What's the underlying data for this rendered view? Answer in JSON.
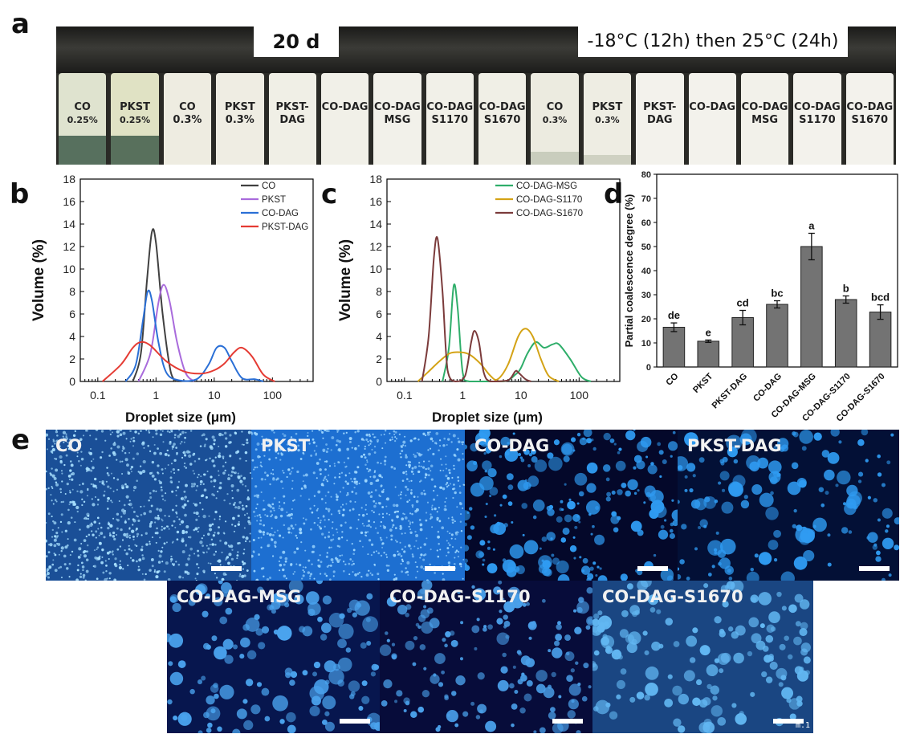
{
  "panel_labels": [
    "a",
    "b",
    "c",
    "d",
    "e"
  ],
  "panel_a": {
    "banner_left": "20 d",
    "banner_right": "-18°C (12h) then 25°C (24h)",
    "vials": [
      {
        "line1": "CO",
        "line2": "0.25%"
      },
      {
        "line1": "PKST",
        "line2": "0.25%"
      },
      {
        "line1": "CO",
        "line2": "0.3%"
      },
      {
        "line1": "PKST",
        "line2": "0.3%"
      },
      {
        "line1": "PKST-DAG",
        "line2": ""
      },
      {
        "line1": "CO-DAG",
        "line2": ""
      },
      {
        "line1": "CO-DAG",
        "line2": "MSG"
      },
      {
        "line1": "CO-DAG",
        "line2": "S1170"
      },
      {
        "line1": "CO-DAG",
        "line2": "S1670"
      },
      {
        "line1": "CO",
        "line2": "0.3%"
      },
      {
        "line1": "PKST",
        "line2": "0.3%"
      },
      {
        "line1": "PKST-DAG",
        "line2": ""
      },
      {
        "line1": "CO-DAG",
        "line2": ""
      },
      {
        "line1": "CO-DAG",
        "line2": "MSG"
      },
      {
        "line1": "CO-DAG",
        "line2": "S1170"
      },
      {
        "line1": "CO-DAG",
        "line2": "S1670"
      }
    ]
  },
  "panel_e": {
    "images": [
      "CO",
      "PKST",
      "CO-DAG",
      "PKST-DAG",
      "CO-DAG-MSG",
      "CO-DAG-S1170",
      "CO-DAG-S1670"
    ],
    "corner_mark": "m.1"
  },
  "chart_data": [
    {
      "type": "line",
      "xlabel": "Droplet size (μm)",
      "ylabel": "Volume (%)",
      "xscale": "log",
      "xlim": [
        0.05,
        500
      ],
      "ylim": [
        0,
        18
      ],
      "x_ticks": [
        0.1,
        1,
        10,
        100
      ],
      "x_tick_labels": [
        "0.1",
        "1",
        "10",
        "100"
      ],
      "y_ticks": [
        0,
        2,
        4,
        6,
        8,
        10,
        12,
        14,
        16,
        18
      ],
      "legend_position": "top-right",
      "series": [
        {
          "name": "CO",
          "color": "#404040",
          "x": [
            0.4,
            0.55,
            0.7,
            0.85,
            1.0,
            1.3,
            1.8,
            2.3
          ],
          "y": [
            0,
            2.5,
            9.0,
            13.3,
            12.3,
            6.0,
            0.8,
            0
          ]
        },
        {
          "name": "PKST",
          "color": "#a96bdc",
          "x": [
            0.5,
            0.8,
            1.1,
            1.35,
            1.7,
            2.3,
            3.2,
            4.5
          ],
          "y": [
            0,
            2.5,
            7.0,
            8.6,
            7.2,
            3.5,
            0.8,
            0
          ]
        },
        {
          "name": "CO-DAG",
          "color": "#2a6fd6",
          "x": [
            0.3,
            0.45,
            0.6,
            0.72,
            0.85,
            1.1,
            1.5,
            2.5,
            5,
            8,
            11,
            15,
            20,
            30,
            50,
            70
          ],
          "y": [
            0,
            1.5,
            5.5,
            8.0,
            7.2,
            3.5,
            0.8,
            0.1,
            0.2,
            1.5,
            3.0,
            3.0,
            1.8,
            0.3,
            0.2,
            0
          ]
        },
        {
          "name": "PKST-DAG",
          "color": "#e53b33",
          "x": [
            0.12,
            0.25,
            0.4,
            0.55,
            0.8,
            1.5,
            3,
            6,
            10,
            15,
            22,
            30,
            45,
            70,
            110
          ],
          "y": [
            0,
            1.5,
            3.0,
            3.5,
            3.2,
            1.8,
            0.9,
            0.7,
            1.0,
            1.6,
            2.6,
            3.0,
            2.2,
            0.6,
            0
          ]
        }
      ]
    },
    {
      "type": "line",
      "xlabel": "Droplet size (μm)",
      "ylabel": "Volume (%)",
      "xscale": "log",
      "xlim": [
        0.05,
        500
      ],
      "ylim": [
        0,
        18
      ],
      "x_ticks": [
        0.1,
        1,
        10,
        100
      ],
      "x_tick_labels": [
        "0.1",
        "1",
        "10",
        "100"
      ],
      "y_ticks": [
        0,
        2,
        4,
        6,
        8,
        10,
        12,
        14,
        16,
        18
      ],
      "legend_position": "top-right",
      "series": [
        {
          "name": "CO-DAG-MSG",
          "color": "#2fae6a",
          "x": [
            0.45,
            0.58,
            0.7,
            0.82,
            1.0,
            1.3,
            5,
            8,
            10,
            13,
            18,
            25,
            35,
            45,
            70,
            110,
            160
          ],
          "y": [
            0,
            3.0,
            8.5,
            6.5,
            0.8,
            0,
            0,
            0.6,
            1.2,
            2.5,
            3.5,
            3.0,
            3.3,
            3.3,
            2.0,
            0.4,
            0
          ]
        },
        {
          "name": "CO-DAG-S1170",
          "color": "#d4a316",
          "x": [
            0.17,
            0.25,
            0.4,
            0.6,
            0.9,
            1.3,
            2,
            3,
            4,
            6,
            9,
            12,
            16,
            22,
            30,
            45
          ],
          "y": [
            0,
            0.8,
            1.8,
            2.5,
            2.6,
            2.4,
            1.6,
            0.5,
            0.2,
            1.5,
            4.0,
            4.7,
            4.0,
            2.0,
            0.5,
            0
          ]
        },
        {
          "name": "CO-DAG-S1670",
          "color": "#7b3b3b",
          "x": [
            0.2,
            0.26,
            0.32,
            0.37,
            0.45,
            0.55,
            0.75,
            1.1,
            1.4,
            1.6,
            1.9,
            2.3,
            3.0,
            6,
            8,
            9,
            12,
            15
          ],
          "y": [
            0,
            4.0,
            11.0,
            12.7,
            8.0,
            1.0,
            0,
            0.5,
            3.5,
            4.5,
            3.5,
            0.8,
            0,
            0.1,
            0.9,
            0.8,
            0.2,
            0
          ]
        }
      ]
    },
    {
      "type": "bar",
      "ylabel": "Partial coalescence degree (%)",
      "ylim": [
        0,
        80
      ],
      "y_ticks": [
        0,
        10,
        20,
        30,
        40,
        50,
        60,
        70,
        80
      ],
      "bar_color": "#737373",
      "categories": [
        "CO",
        "PKST",
        "PKST-DAG",
        "CO-DAG",
        "CO-DAG-MSG",
        "CO-DAG-S1170",
        "CO-DAG-S1670"
      ],
      "values": [
        16.5,
        10.7,
        20.5,
        26.0,
        50.0,
        28.0,
        22.8
      ],
      "errors": [
        1.8,
        0.5,
        3.0,
        1.5,
        5.5,
        1.5,
        3.0
      ],
      "annotations": [
        "de",
        "e",
        "cd",
        "bc",
        "a",
        "b",
        "bcd"
      ]
    }
  ]
}
